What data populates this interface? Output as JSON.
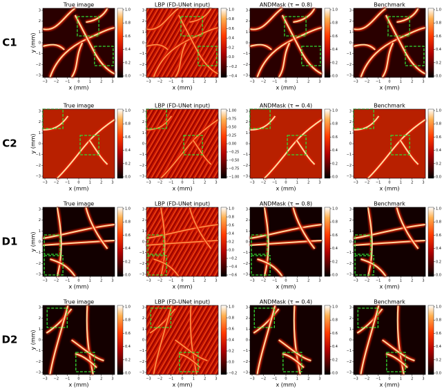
{
  "x_label": "x (mm)",
  "y_label": "y (mm)",
  "axis_ticks": [
    "−3",
    "−2",
    "−1",
    "0",
    "1",
    "2",
    "3"
  ],
  "rows": [
    {
      "label": "C1",
      "panels": [
        {
          "title": "True image",
          "cbar_ticks": [
            "0.0",
            "0.2",
            "0.4",
            "0.6",
            "0.8",
            "1.0"
          ]
        },
        {
          "title": "LBP (FD-UNet input)",
          "cbar_ticks": [
            "−0.4",
            "−0.2",
            "0.0",
            "0.2",
            "0.4",
            "0.6",
            "0.8",
            "1.0"
          ]
        },
        {
          "title": "ANDMask (τ = 0.8)",
          "cbar_ticks": [
            "0.0",
            "0.2",
            "0.4",
            "0.6",
            "0.8",
            "1.0"
          ]
        },
        {
          "title": "Benchmark",
          "cbar_ticks": [
            "0.0",
            "0.2",
            "0.4",
            "0.6",
            "0.8",
            "1.0"
          ]
        }
      ]
    },
    {
      "label": "C2",
      "panels": [
        {
          "title": "True image",
          "cbar_ticks": [
            "0.0",
            "0.2",
            "0.4",
            "0.6",
            "0.8",
            "1.0"
          ]
        },
        {
          "title": "LBP (FD-UNet input)",
          "cbar_ticks": [
            "−1.00",
            "−0.75",
            "−0.50",
            "−0.25",
            "0.00",
            "0.25",
            "0.50",
            "0.75",
            "1.00"
          ]
        },
        {
          "title": "ANDMask (τ = 0.4)",
          "cbar_ticks": [
            "0.0",
            "0.2",
            "0.4",
            "0.6",
            "0.8",
            "1.0"
          ]
        },
        {
          "title": "Benchmark",
          "cbar_ticks": [
            "0.0",
            "0.2",
            "0.4",
            "0.6",
            "0.8",
            "1.0"
          ]
        }
      ]
    },
    {
      "label": "D1",
      "panels": [
        {
          "title": "True image",
          "cbar_ticks": [
            "0.0",
            "0.2",
            "0.4",
            "0.6",
            "0.8",
            "1.0"
          ]
        },
        {
          "title": "LBP (FD-UNet input)",
          "cbar_ticks": [
            "−0.6",
            "−0.4",
            "−0.2",
            "0.0",
            "0.2",
            "0.4",
            "0.6",
            "0.8",
            "1.0"
          ]
        },
        {
          "title": "ANDMask (τ = 0.8)",
          "cbar_ticks": [
            "0.0",
            "0.2",
            "0.4",
            "0.6",
            "0.8",
            "1.0"
          ]
        },
        {
          "title": "Benchmark",
          "cbar_ticks": [
            "0.0",
            "0.2",
            "0.4",
            "0.6",
            "0.8",
            "1.0"
          ]
        }
      ]
    },
    {
      "label": "D2",
      "panels": [
        {
          "title": "True image",
          "cbar_ticks": [
            "0.0",
            "0.2",
            "0.4",
            "0.6",
            "0.8",
            "1.0"
          ]
        },
        {
          "title": "LBP (FD-UNet input)",
          "cbar_ticks": [
            "−0.2",
            "0.0",
            "0.2",
            "0.4",
            "0.6",
            "0.8",
            "1.0"
          ]
        },
        {
          "title": "ANDMask (τ = 0.4)",
          "cbar_ticks": [
            "0.0",
            "0.2",
            "0.4",
            "0.6",
            "0.8",
            "1.0"
          ]
        },
        {
          "title": "Benchmark",
          "cbar_ticks": [
            "0.0",
            "0.2",
            "0.4",
            "0.6",
            "0.8",
            "1.0"
          ]
        }
      ]
    }
  ]
}
